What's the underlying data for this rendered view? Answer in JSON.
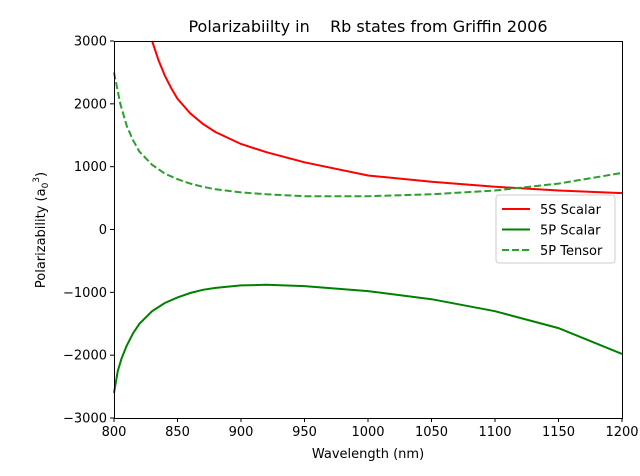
{
  "chart_data": {
    "type": "line",
    "title": "Polarizabiilty in    Rb states from Griffin 2006",
    "xlabel": "Wavelength (nm)",
    "ylabel": "Polarizability (a0^3)",
    "ylabel_parts": {
      "main": "Polarizability (a",
      "sub": "0",
      "sup": "3",
      "close": ")"
    },
    "xlim": [
      800,
      1200
    ],
    "ylim": [
      -3000,
      3000
    ],
    "xticks": [
      800,
      850,
      900,
      950,
      1000,
      1050,
      1100,
      1150,
      1200
    ],
    "xtick_labels": [
      "800",
      "850",
      "900",
      "950",
      "1000",
      "1050",
      "1100",
      "1150",
      "1200"
    ],
    "yticks": [
      -3000,
      -2000,
      -1000,
      0,
      1000,
      2000,
      3000
    ],
    "ytick_labels": [
      "−3000",
      "−2000",
      "−1000",
      "0",
      "1000",
      "2000",
      "3000"
    ],
    "grid": false,
    "legend_position": "center-right",
    "series": [
      {
        "name": "5S Scalar",
        "color": "#ff0000",
        "dash": "solid",
        "x": [
          830,
          835,
          840,
          845,
          850,
          860,
          870,
          880,
          900,
          920,
          950,
          1000,
          1050,
          1100,
          1150,
          1200
        ],
        "y": [
          3000,
          2700,
          2450,
          2250,
          2080,
          1850,
          1680,
          1550,
          1360,
          1230,
          1070,
          860,
          760,
          680,
          620,
          580
        ]
      },
      {
        "name": "5P Scalar",
        "color": "#008000",
        "dash": "solid",
        "x": [
          800,
          803,
          806,
          810,
          815,
          820,
          830,
          840,
          850,
          860,
          870,
          880,
          900,
          920,
          950,
          1000,
          1050,
          1100,
          1150,
          1200
        ],
        "y": [
          -2600,
          -2250,
          -2050,
          -1850,
          -1650,
          -1500,
          -1300,
          -1170,
          -1080,
          -1010,
          -960,
          -930,
          -890,
          -880,
          -900,
          -980,
          -1110,
          -1300,
          -1570,
          -1980
        ]
      },
      {
        "name": "5P Tensor",
        "color": "#2ca02c",
        "dash": "dashed",
        "x": [
          800,
          805,
          810,
          815,
          820,
          830,
          840,
          850,
          860,
          870,
          880,
          900,
          920,
          950,
          1000,
          1050,
          1100,
          1150,
          1200
        ],
        "y": [
          2500,
          2000,
          1650,
          1420,
          1240,
          1030,
          890,
          800,
          730,
          680,
          640,
          590,
          560,
          530,
          530,
          560,
          620,
          730,
          900
        ]
      }
    ]
  }
}
